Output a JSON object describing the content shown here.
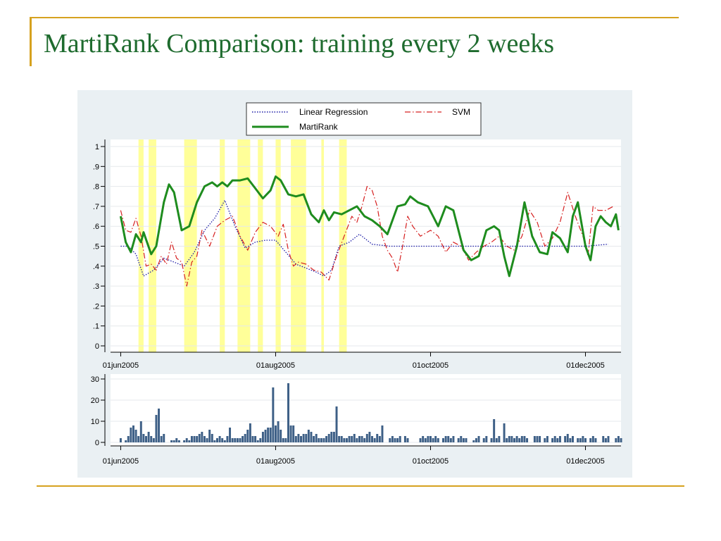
{
  "slide": {
    "title": "MartiRank Comparison: training every 2 weeks"
  },
  "colors": {
    "title": "#1e6b2e",
    "accent_rule": "#d6a21f",
    "panel_bg": "#eaf0f3",
    "plot_bg": "#ffffff",
    "highlight": "#ffff99",
    "linear_regression": "#1a1aa6",
    "svm": "#d62020",
    "martirank": "#1e8c1e",
    "bars": "#3d5f86"
  },
  "chart_data": [
    {
      "type": "line",
      "xlabel": "",
      "ylabel": "",
      "x_range": [
        "2005-05-28",
        "2005-12-15"
      ],
      "ylim": [
        0,
        1
      ],
      "yticks": [
        "0",
        ".1",
        ".2",
        ".3",
        ".4",
        ".5",
        ".6",
        ".7",
        ".8",
        ".9",
        "1"
      ],
      "xticks": [
        {
          "date": "2005-06-01",
          "label": "01jun2005"
        },
        {
          "date": "2005-08-01",
          "label": "01aug2005"
        },
        {
          "date": "2005-10-01",
          "label": "01oct2005"
        },
        {
          "date": "2005-12-01",
          "label": "01dec2005"
        }
      ],
      "grid": true,
      "legend": {
        "placement": "top",
        "entries": [
          "Linear Regression",
          "SVM",
          "MartiRank"
        ]
      },
      "highlighted_periods": [
        [
          "2005-06-08",
          "2005-06-10"
        ],
        [
          "2005-06-12",
          "2005-06-15"
        ],
        [
          "2005-06-26",
          "2005-07-01"
        ],
        [
          "2005-07-10",
          "2005-07-12"
        ],
        [
          "2005-07-17",
          "2005-07-22"
        ],
        [
          "2005-07-25",
          "2005-07-27"
        ],
        [
          "2005-08-01",
          "2005-08-03"
        ],
        [
          "2005-08-07",
          "2005-08-13"
        ],
        [
          "2005-08-19",
          "2005-08-20"
        ],
        [
          "2005-08-26",
          "2005-08-29"
        ]
      ],
      "series": [
        {
          "name": "Linear Regression",
          "style": "dotted",
          "points": [
            [
              "2005-06-01",
              0.5
            ],
            [
              "2005-06-04",
              0.5
            ],
            [
              "2005-06-07",
              0.46
            ],
            [
              "2005-06-10",
              0.35
            ],
            [
              "2005-06-14",
              0.38
            ],
            [
              "2005-06-18",
              0.44
            ],
            [
              "2005-06-22",
              0.42
            ],
            [
              "2005-06-26",
              0.4
            ],
            [
              "2005-06-30",
              0.47
            ],
            [
              "2005-07-04",
              0.58
            ],
            [
              "2005-07-08",
              0.64
            ],
            [
              "2005-07-12",
              0.73
            ],
            [
              "2005-07-16",
              0.6
            ],
            [
              "2005-07-20",
              0.49
            ],
            [
              "2005-07-24",
              0.52
            ],
            [
              "2005-07-28",
              0.53
            ],
            [
              "2005-08-01",
              0.53
            ],
            [
              "2005-08-05",
              0.47
            ],
            [
              "2005-08-09",
              0.41
            ],
            [
              "2005-08-13",
              0.39
            ],
            [
              "2005-08-17",
              0.37
            ],
            [
              "2005-08-20",
              0.35
            ],
            [
              "2005-08-23",
              0.38
            ],
            [
              "2005-08-26",
              0.5
            ],
            [
              "2005-08-30",
              0.52
            ],
            [
              "2005-09-03",
              0.56
            ],
            [
              "2005-09-08",
              0.51
            ],
            [
              "2005-09-15",
              0.5
            ],
            [
              "2005-10-01",
              0.5
            ],
            [
              "2005-10-15",
              0.5
            ],
            [
              "2005-11-01",
              0.5
            ],
            [
              "2005-11-15",
              0.5
            ],
            [
              "2005-12-01",
              0.5
            ],
            [
              "2005-12-10",
              0.51
            ]
          ]
        },
        {
          "name": "SVM",
          "style": "dashed",
          "points": [
            [
              "2005-06-01",
              0.68
            ],
            [
              "2005-06-03",
              0.58
            ],
            [
              "2005-06-05",
              0.57
            ],
            [
              "2005-06-07",
              0.64
            ],
            [
              "2005-06-09",
              0.55
            ],
            [
              "2005-06-11",
              0.4
            ],
            [
              "2005-06-13",
              0.41
            ],
            [
              "2005-06-15",
              0.38
            ],
            [
              "2005-06-17",
              0.45
            ],
            [
              "2005-06-19",
              0.41
            ],
            [
              "2005-06-21",
              0.52
            ],
            [
              "2005-06-23",
              0.44
            ],
            [
              "2005-06-25",
              0.42
            ],
            [
              "2005-06-27",
              0.3
            ],
            [
              "2005-06-29",
              0.42
            ],
            [
              "2005-07-01",
              0.45
            ],
            [
              "2005-07-03",
              0.58
            ],
            [
              "2005-07-06",
              0.5
            ],
            [
              "2005-07-09",
              0.6
            ],
            [
              "2005-07-12",
              0.63
            ],
            [
              "2005-07-15",
              0.65
            ],
            [
              "2005-07-18",
              0.55
            ],
            [
              "2005-07-21",
              0.48
            ],
            [
              "2005-07-24",
              0.57
            ],
            [
              "2005-07-27",
              0.62
            ],
            [
              "2005-07-30",
              0.6
            ],
            [
              "2005-08-02",
              0.55
            ],
            [
              "2005-08-04",
              0.61
            ],
            [
              "2005-08-06",
              0.48
            ],
            [
              "2005-08-08",
              0.4
            ],
            [
              "2005-08-10",
              0.42
            ],
            [
              "2005-08-13",
              0.41
            ],
            [
              "2005-08-16",
              0.38
            ],
            [
              "2005-08-19",
              0.37
            ],
            [
              "2005-08-22",
              0.33
            ],
            [
              "2005-08-25",
              0.45
            ],
            [
              "2005-08-28",
              0.55
            ],
            [
              "2005-08-31",
              0.65
            ],
            [
              "2005-09-02",
              0.62
            ],
            [
              "2005-09-04",
              0.7
            ],
            [
              "2005-09-06",
              0.8
            ],
            [
              "2005-09-08",
              0.78
            ],
            [
              "2005-09-10",
              0.7
            ],
            [
              "2005-09-12",
              0.55
            ],
            [
              "2005-09-14",
              0.48
            ],
            [
              "2005-09-16",
              0.44
            ],
            [
              "2005-09-18",
              0.37
            ],
            [
              "2005-09-20",
              0.5
            ],
            [
              "2005-09-22",
              0.65
            ],
            [
              "2005-09-24",
              0.6
            ],
            [
              "2005-09-27",
              0.55
            ],
            [
              "2005-10-01",
              0.58
            ],
            [
              "2005-10-04",
              0.55
            ],
            [
              "2005-10-07",
              0.47
            ],
            [
              "2005-10-10",
              0.52
            ],
            [
              "2005-10-13",
              0.5
            ],
            [
              "2005-10-16",
              0.43
            ],
            [
              "2005-10-19",
              0.47
            ],
            [
              "2005-10-22",
              0.5
            ],
            [
              "2005-10-25",
              0.52
            ],
            [
              "2005-10-28",
              0.55
            ],
            [
              "2005-10-31",
              0.5
            ],
            [
              "2005-11-03",
              0.48
            ],
            [
              "2005-11-06",
              0.55
            ],
            [
              "2005-11-09",
              0.68
            ],
            [
              "2005-11-12",
              0.62
            ],
            [
              "2005-11-15",
              0.5
            ],
            [
              "2005-11-18",
              0.54
            ],
            [
              "2005-11-21",
              0.62
            ],
            [
              "2005-11-24",
              0.77
            ],
            [
              "2005-11-27",
              0.65
            ],
            [
              "2005-11-30",
              0.55
            ],
            [
              "2005-12-02",
              0.45
            ],
            [
              "2005-12-04",
              0.7
            ],
            [
              "2005-12-06",
              0.68
            ],
            [
              "2005-12-09",
              0.68
            ],
            [
              "2005-12-12",
              0.7
            ]
          ]
        },
        {
          "name": "MartiRank",
          "style": "solid",
          "points": [
            [
              "2005-06-01",
              0.65
            ],
            [
              "2005-06-03",
              0.52
            ],
            [
              "2005-06-05",
              0.47
            ],
            [
              "2005-06-07",
              0.56
            ],
            [
              "2005-06-09",
              0.52
            ],
            [
              "2005-06-10",
              0.57
            ],
            [
              "2005-06-13",
              0.46
            ],
            [
              "2005-06-15",
              0.5
            ],
            [
              "2005-06-18",
              0.72
            ],
            [
              "2005-06-20",
              0.81
            ],
            [
              "2005-06-22",
              0.77
            ],
            [
              "2005-06-25",
              0.58
            ],
            [
              "2005-06-28",
              0.6
            ],
            [
              "2005-07-01",
              0.72
            ],
            [
              "2005-07-04",
              0.8
            ],
            [
              "2005-07-07",
              0.82
            ],
            [
              "2005-07-09",
              0.8
            ],
            [
              "2005-07-11",
              0.82
            ],
            [
              "2005-07-13",
              0.8
            ],
            [
              "2005-07-15",
              0.83
            ],
            [
              "2005-07-18",
              0.83
            ],
            [
              "2005-07-21",
              0.84
            ],
            [
              "2005-07-24",
              0.79
            ],
            [
              "2005-07-27",
              0.74
            ],
            [
              "2005-07-30",
              0.78
            ],
            [
              "2005-08-01",
              0.85
            ],
            [
              "2005-08-03",
              0.83
            ],
            [
              "2005-08-06",
              0.76
            ],
            [
              "2005-08-09",
              0.75
            ],
            [
              "2005-08-12",
              0.76
            ],
            [
              "2005-08-15",
              0.66
            ],
            [
              "2005-08-18",
              0.62
            ],
            [
              "2005-08-20",
              0.68
            ],
            [
              "2005-08-22",
              0.63
            ],
            [
              "2005-08-24",
              0.67
            ],
            [
              "2005-08-27",
              0.66
            ],
            [
              "2005-08-30",
              0.68
            ],
            [
              "2005-09-02",
              0.7
            ],
            [
              "2005-09-05",
              0.65
            ],
            [
              "2005-09-08",
              0.63
            ],
            [
              "2005-09-11",
              0.6
            ],
            [
              "2005-09-14",
              0.56
            ],
            [
              "2005-09-18",
              0.7
            ],
            [
              "2005-09-21",
              0.71
            ],
            [
              "2005-09-23",
              0.75
            ],
            [
              "2005-09-26",
              0.72
            ],
            [
              "2005-09-30",
              0.7
            ],
            [
              "2005-10-02",
              0.65
            ],
            [
              "2005-10-04",
              0.6
            ],
            [
              "2005-10-07",
              0.7
            ],
            [
              "2005-10-10",
              0.68
            ],
            [
              "2005-10-14",
              0.48
            ],
            [
              "2005-10-17",
              0.43
            ],
            [
              "2005-10-20",
              0.45
            ],
            [
              "2005-10-23",
              0.58
            ],
            [
              "2005-10-26",
              0.6
            ],
            [
              "2005-10-28",
              0.58
            ],
            [
              "2005-10-30",
              0.45
            ],
            [
              "2005-11-01",
              0.35
            ],
            [
              "2005-11-04",
              0.5
            ],
            [
              "2005-11-07",
              0.72
            ],
            [
              "2005-11-10",
              0.55
            ],
            [
              "2005-11-13",
              0.47
            ],
            [
              "2005-11-16",
              0.46
            ],
            [
              "2005-11-18",
              0.57
            ],
            [
              "2005-11-21",
              0.54
            ],
            [
              "2005-11-24",
              0.47
            ],
            [
              "2005-11-26",
              0.65
            ],
            [
              "2005-11-28",
              0.72
            ],
            [
              "2005-12-01",
              0.5
            ],
            [
              "2005-12-03",
              0.43
            ],
            [
              "2005-12-05",
              0.6
            ],
            [
              "2005-12-07",
              0.65
            ],
            [
              "2005-12-09",
              0.62
            ],
            [
              "2005-12-11",
              0.6
            ],
            [
              "2005-12-13",
              0.66
            ],
            [
              "2005-12-14",
              0.58
            ]
          ]
        }
      ]
    },
    {
      "type": "bar",
      "xlabel": "",
      "ylabel": "",
      "x_range": [
        "2005-05-28",
        "2005-12-15"
      ],
      "ylim": [
        0,
        30
      ],
      "yticks": [
        0,
        10,
        20,
        30
      ],
      "xticks": [
        {
          "date": "2005-06-01",
          "label": "01jun2005"
        },
        {
          "date": "2005-08-01",
          "label": "01aug2005"
        },
        {
          "date": "2005-10-01",
          "label": "01oct2005"
        },
        {
          "date": "2005-12-01",
          "label": "01dec2005"
        }
      ],
      "grid": true,
      "start_date": "2005-06-01",
      "daily_values": [
        2,
        0,
        1,
        3,
        7,
        8,
        6,
        3,
        10,
        4,
        3,
        5,
        3,
        2,
        13,
        16,
        3,
        4,
        0,
        0,
        1,
        1,
        2,
        1,
        0,
        1,
        2,
        1,
        3,
        3,
        3,
        4,
        5,
        3,
        2,
        6,
        4,
        1,
        2,
        3,
        2,
        1,
        3,
        7,
        2,
        2,
        2,
        2,
        3,
        4,
        6,
        9,
        3,
        3,
        1,
        2,
        5,
        6,
        7,
        7,
        26,
        8,
        10,
        6,
        2,
        2,
        28,
        8,
        8,
        3,
        4,
        3,
        4,
        4,
        6,
        5,
        3,
        4,
        2,
        2,
        2,
        3,
        4,
        5,
        5,
        17,
        3,
        3,
        2,
        2,
        3,
        3,
        4,
        2,
        3,
        3,
        2,
        4,
        5,
        3,
        2,
        4,
        3,
        8,
        0,
        0,
        2,
        3,
        2,
        2,
        3,
        0,
        3,
        2,
        0,
        0,
        0,
        0,
        2,
        3,
        2,
        3,
        3,
        2,
        3,
        2,
        0,
        2,
        3,
        3,
        2,
        3,
        0,
        2,
        3,
        2,
        2,
        0,
        0,
        1,
        2,
        3,
        0,
        2,
        3,
        0,
        2,
        11,
        2,
        3,
        0,
        9,
        2,
        3,
        3,
        2,
        3,
        2,
        3,
        3,
        2,
        0,
        0,
        3,
        3,
        3,
        0,
        2,
        3,
        0,
        2,
        3,
        2,
        3,
        0,
        3,
        4,
        2,
        3,
        0,
        2,
        2,
        3,
        2,
        0,
        2,
        3,
        2,
        0,
        0,
        3,
        2,
        3,
        0,
        0,
        2,
        3,
        2,
        0,
        0,
        0,
        0,
        3,
        2,
        2,
        5,
        3
      ]
    }
  ]
}
